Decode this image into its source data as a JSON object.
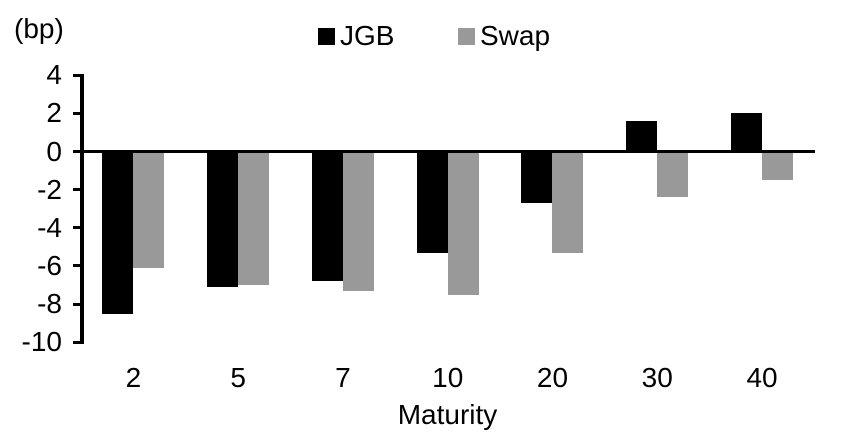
{
  "chart_data": {
    "type": "bar",
    "title": "",
    "unit_label": "(bp)",
    "xlabel": "Maturity",
    "categories": [
      "2",
      "5",
      "7",
      "10",
      "20",
      "30",
      "40"
    ],
    "series": [
      {
        "name": "JGB",
        "color": "#000000",
        "values": [
          -8.5,
          -7.1,
          -6.8,
          -5.3,
          -2.7,
          1.6,
          2.0
        ]
      },
      {
        "name": "Swap",
        "color": "#999999",
        "values": [
          -6.1,
          -7.0,
          -7.3,
          -7.5,
          -5.3,
          -2.4,
          -1.5
        ]
      }
    ],
    "ylim": [
      -10,
      4
    ],
    "yticks": [
      4,
      2,
      0,
      -2,
      -4,
      -6,
      -8,
      -10
    ],
    "legend_position": "top-center",
    "grid": false,
    "axis_color": "#000000",
    "background_color": "#ffffff"
  }
}
